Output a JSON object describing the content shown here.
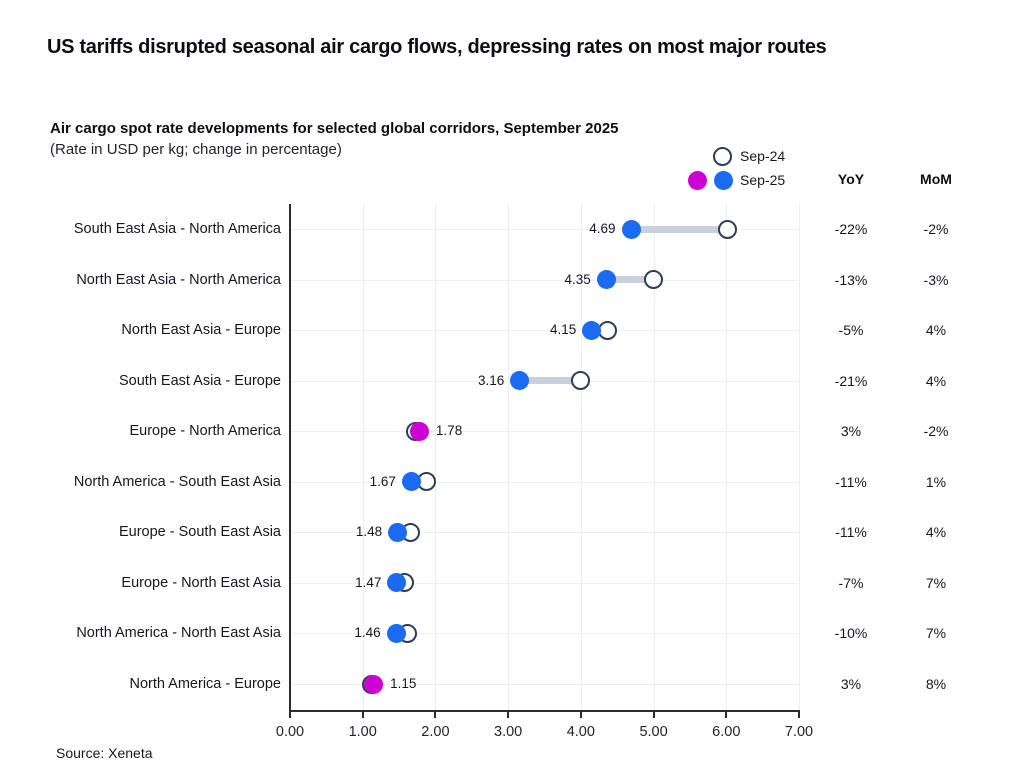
{
  "header": {
    "title": "US tariffs disrupted seasonal air cargo flows, depressing rates on most major routes",
    "subtitle": "Air cargo spot rate developments for selected global corridors, September 2025",
    "subtitle2": "(Rate in USD per kg; change in percentage)"
  },
  "legend": {
    "sep24_label": "Sep-24",
    "sep25_label": "Sep-25"
  },
  "columns": {
    "yoy": "YoY",
    "mom": "MoM"
  },
  "source": "Source: Xeneta",
  "colors": {
    "sep25_blue": "#1b6bf2",
    "sep25_magenta": "#cc00d4",
    "sep24_stroke": "#2e3d54",
    "connector": "#c8d0db",
    "gridline": "#efeff3",
    "axis": "#2a2a30"
  },
  "chart_data": {
    "type": "dumbbell",
    "title": "Air cargo spot rate developments for selected global corridors, September 2025",
    "xlabel": "Rate in USD per kg",
    "xlim": [
      0,
      7
    ],
    "xticks": [
      "0.00",
      "1.00",
      "2.00",
      "3.00",
      "4.00",
      "5.00",
      "6.00",
      "7.00"
    ],
    "grid": true,
    "legend_position": "top-right",
    "categories": [
      "South East Asia - North America",
      "North East Asia - North America",
      "North East Asia  - Europe",
      "South East Asia - Europe",
      "Europe - North America",
      "North America - South East Asia",
      "Europe - South East Asia",
      "Europe - North East Asia",
      "North America - North East Asia",
      "North America - Europe"
    ],
    "series": [
      {
        "name": "Sep-24",
        "values": [
          6.01,
          5.0,
          4.37,
          4.0,
          1.73,
          1.88,
          1.66,
          1.58,
          1.62,
          1.12
        ]
      },
      {
        "name": "Sep-25",
        "values": [
          4.69,
          4.35,
          4.15,
          3.16,
          1.78,
          1.67,
          1.48,
          1.47,
          1.46,
          1.15
        ]
      }
    ],
    "value_labels": [
      "4.69",
      "4.35",
      "4.15",
      "3.16",
      "1.78",
      "1.67",
      "1.48",
      "1.47",
      "1.46",
      "1.15"
    ],
    "label_side": [
      "left",
      "left",
      "left",
      "left",
      "right",
      "left",
      "left",
      "left",
      "left",
      "right"
    ],
    "dot_color_key": [
      "blue",
      "blue",
      "blue",
      "blue",
      "magenta",
      "blue",
      "blue",
      "blue",
      "blue",
      "magenta"
    ],
    "yoy": [
      "-22%",
      "-13%",
      "-5%",
      "-21%",
      "3%",
      "-11%",
      "-11%",
      "-7%",
      "-10%",
      "3%"
    ],
    "mom": [
      "-2%",
      "-3%",
      "4%",
      "4%",
      "-2%",
      "1%",
      "4%",
      "7%",
      "7%",
      "8%"
    ]
  }
}
